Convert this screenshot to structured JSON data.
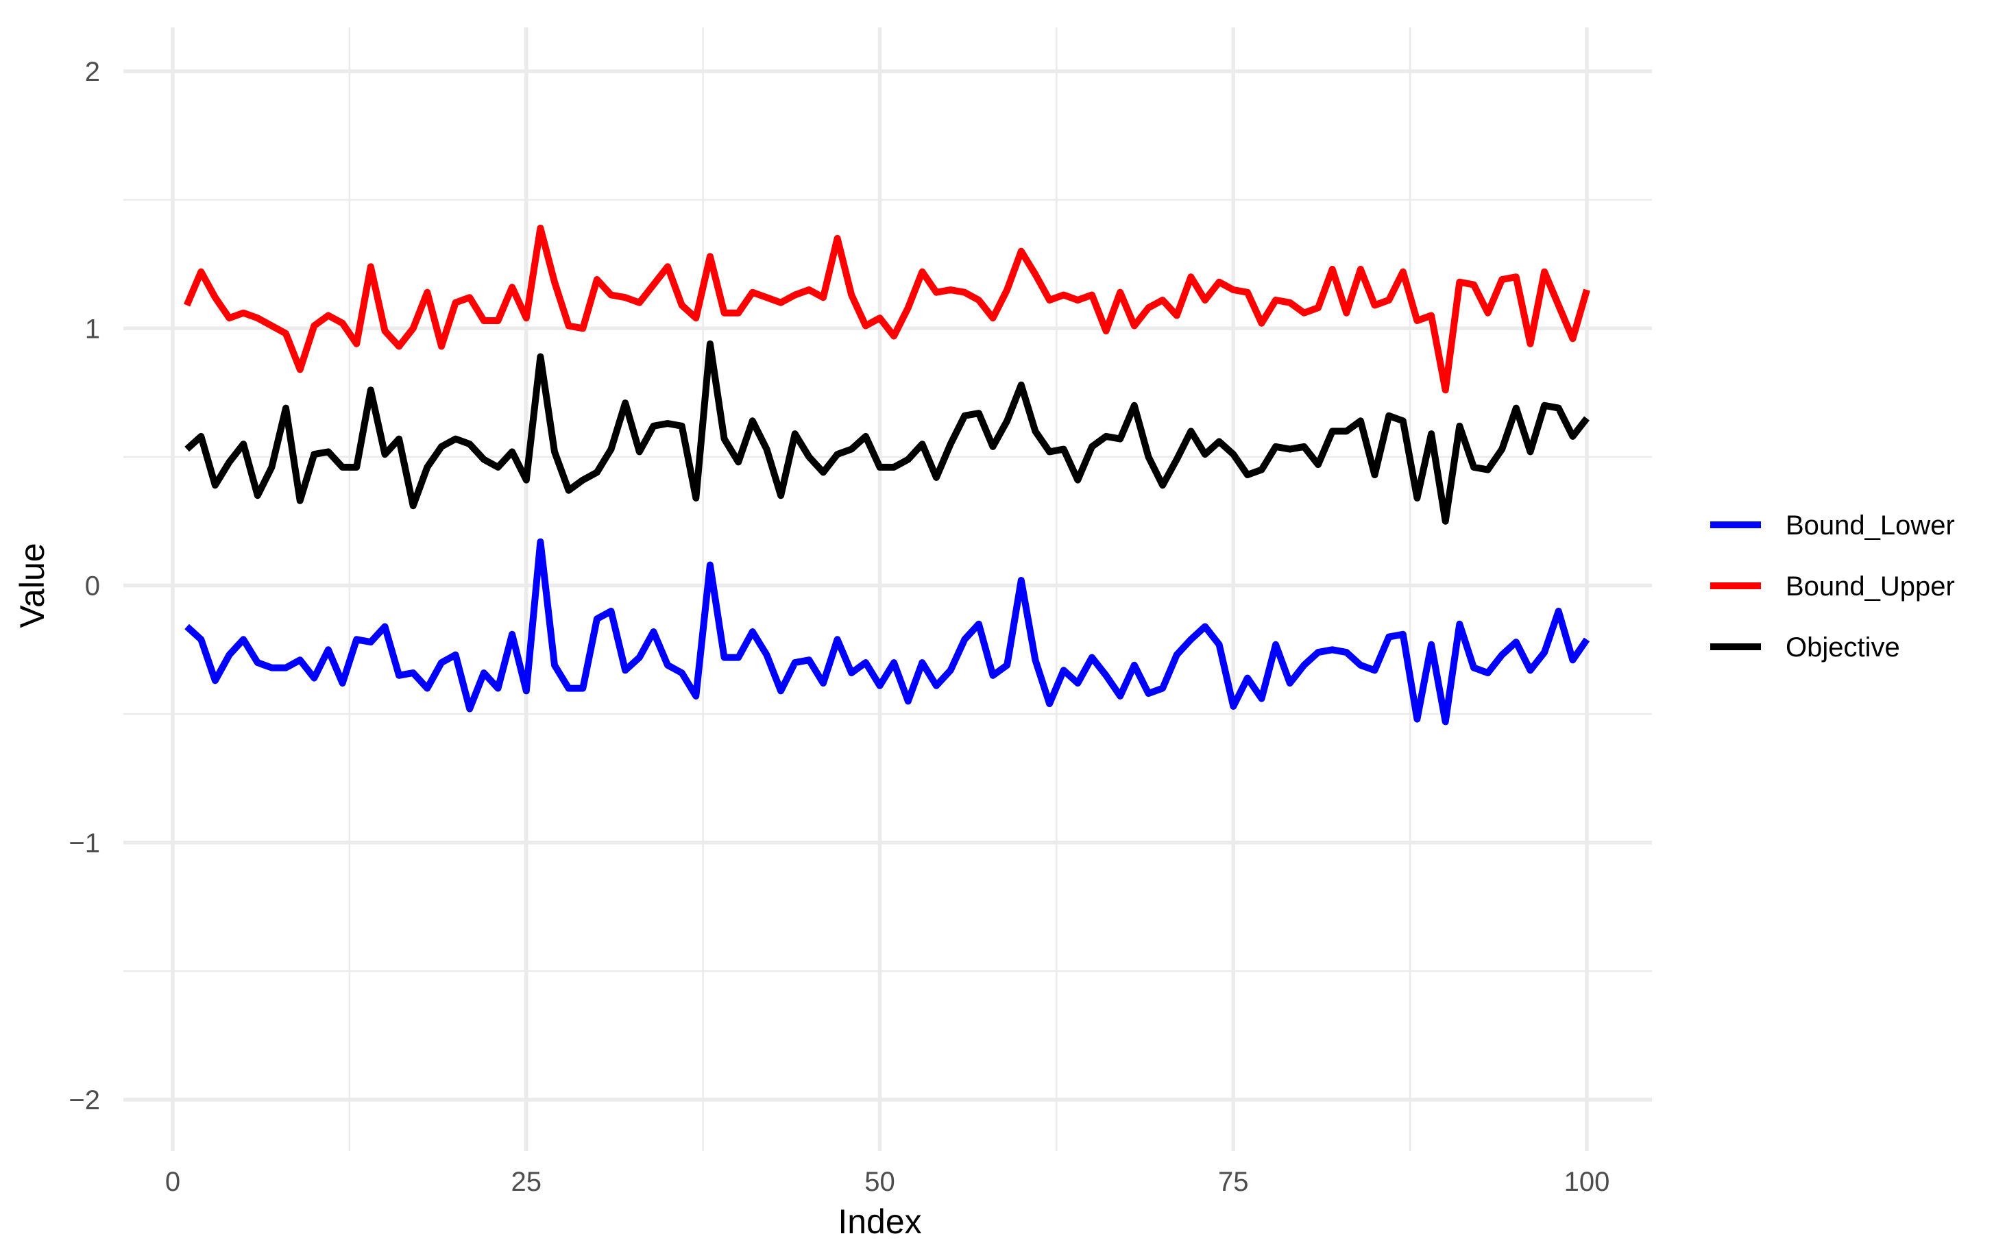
{
  "chart_data": {
    "type": "line",
    "xlabel": "Index",
    "ylabel": "Value",
    "xlim": [
      0,
      100
    ],
    "ylim": [
      -2.2,
      2.2
    ],
    "x_ticks": [
      0,
      25,
      50,
      75,
      100
    ],
    "y_ticks": [
      -2,
      -1,
      0,
      1,
      2
    ],
    "x_tick_labels": [
      "0",
      "25",
      "50",
      "75",
      "100"
    ],
    "y_tick_labels": [
      "−2",
      "−1",
      "0",
      "1",
      "2"
    ],
    "grid": true,
    "legend_position": "right",
    "x": [
      1,
      2,
      3,
      4,
      5,
      6,
      7,
      8,
      9,
      10,
      11,
      12,
      13,
      14,
      15,
      16,
      17,
      18,
      19,
      20,
      21,
      22,
      23,
      24,
      25,
      26,
      27,
      28,
      29,
      30,
      31,
      32,
      33,
      34,
      35,
      36,
      37,
      38,
      39,
      40,
      41,
      42,
      43,
      44,
      45,
      46,
      47,
      48,
      49,
      50,
      51,
      52,
      53,
      54,
      55,
      56,
      57,
      58,
      59,
      60,
      61,
      62,
      63,
      64,
      65,
      66,
      67,
      68,
      69,
      70,
      71,
      72,
      73,
      74,
      75,
      76,
      77,
      78,
      79,
      80,
      81,
      82,
      83,
      84,
      85,
      86,
      87,
      88,
      89,
      90,
      91,
      92,
      93,
      94,
      95,
      96,
      97,
      98,
      99,
      100
    ],
    "series": [
      {
        "name": "Bound_Lower",
        "color": "#0000ff",
        "values": [
          -0.16,
          -0.21,
          -0.37,
          -0.27,
          -0.21,
          -0.3,
          -0.32,
          -0.32,
          -0.29,
          -0.36,
          -0.25,
          -0.38,
          -0.21,
          -0.22,
          -0.16,
          -0.35,
          -0.34,
          -0.4,
          -0.3,
          -0.27,
          -0.48,
          -0.34,
          -0.4,
          -0.19,
          -0.41,
          0.17,
          -0.31,
          -0.4,
          -0.4,
          -0.13,
          -0.1,
          -0.33,
          -0.28,
          -0.18,
          -0.31,
          -0.34,
          -0.43,
          0.08,
          -0.28,
          -0.28,
          -0.18,
          -0.27,
          -0.41,
          -0.3,
          -0.29,
          -0.38,
          -0.21,
          -0.34,
          -0.3,
          -0.39,
          -0.3,
          -0.45,
          -0.3,
          -0.39,
          -0.33,
          -0.21,
          -0.15,
          -0.35,
          -0.31,
          0.02,
          -0.29,
          -0.46,
          -0.33,
          -0.38,
          -0.28,
          -0.35,
          -0.43,
          -0.31,
          -0.42,
          -0.4,
          -0.27,
          -0.21,
          -0.16,
          -0.23,
          -0.47,
          -0.36,
          -0.44,
          -0.23,
          -0.38,
          -0.31,
          -0.26,
          -0.25,
          -0.26,
          -0.31,
          -0.33,
          -0.2,
          -0.19,
          -0.52,
          -0.23,
          -0.53,
          -0.15,
          -0.32,
          -0.34,
          -0.27,
          -0.22,
          -0.33,
          -0.26,
          -0.1,
          -0.29,
          -0.21
        ]
      },
      {
        "name": "Bound_Upper",
        "color": "#ff0000",
        "values": [
          1.09,
          1.22,
          1.12,
          1.04,
          1.06,
          1.04,
          1.01,
          0.98,
          0.84,
          1.01,
          1.05,
          1.02,
          0.94,
          1.24,
          0.99,
          0.93,
          1.0,
          1.14,
          0.93,
          1.1,
          1.12,
          1.03,
          1.03,
          1.16,
          1.04,
          1.39,
          1.18,
          1.01,
          1.0,
          1.19,
          1.13,
          1.12,
          1.1,
          1.17,
          1.24,
          1.09,
          1.04,
          1.28,
          1.06,
          1.06,
          1.14,
          1.12,
          1.1,
          1.13,
          1.15,
          1.12,
          1.35,
          1.13,
          1.01,
          1.04,
          0.97,
          1.08,
          1.22,
          1.14,
          1.15,
          1.14,
          1.11,
          1.04,
          1.15,
          1.3,
          1.21,
          1.11,
          1.13,
          1.11,
          1.13,
          0.99,
          1.14,
          1.01,
          1.08,
          1.11,
          1.05,
          1.2,
          1.11,
          1.18,
          1.15,
          1.14,
          1.02,
          1.11,
          1.1,
          1.06,
          1.08,
          1.23,
          1.06,
          1.23,
          1.09,
          1.11,
          1.22,
          1.03,
          1.05,
          0.76,
          1.18,
          1.17,
          1.06,
          1.19,
          1.2,
          0.94,
          1.22,
          1.09,
          0.96,
          1.15
        ]
      },
      {
        "name": "Objective",
        "color": "#000000",
        "values": [
          0.53,
          0.58,
          0.39,
          0.48,
          0.55,
          0.35,
          0.46,
          0.69,
          0.33,
          0.51,
          0.52,
          0.46,
          0.46,
          0.76,
          0.51,
          0.57,
          0.31,
          0.46,
          0.54,
          0.57,
          0.55,
          0.49,
          0.46,
          0.52,
          0.41,
          0.89,
          0.52,
          0.37,
          0.41,
          0.44,
          0.53,
          0.71,
          0.52,
          0.62,
          0.63,
          0.62,
          0.34,
          0.94,
          0.57,
          0.48,
          0.64,
          0.53,
          0.35,
          0.59,
          0.5,
          0.44,
          0.51,
          0.53,
          0.58,
          0.46,
          0.46,
          0.49,
          0.55,
          0.42,
          0.55,
          0.66,
          0.67,
          0.54,
          0.64,
          0.78,
          0.6,
          0.52,
          0.53,
          0.41,
          0.54,
          0.58,
          0.57,
          0.7,
          0.5,
          0.39,
          0.49,
          0.6,
          0.51,
          0.56,
          0.51,
          0.43,
          0.45,
          0.54,
          0.53,
          0.54,
          0.47,
          0.6,
          0.6,
          0.64,
          0.43,
          0.66,
          0.64,
          0.34,
          0.59,
          0.25,
          0.62,
          0.46,
          0.45,
          0.53,
          0.69,
          0.52,
          0.7,
          0.69,
          0.58,
          0.65
        ]
      }
    ]
  }
}
